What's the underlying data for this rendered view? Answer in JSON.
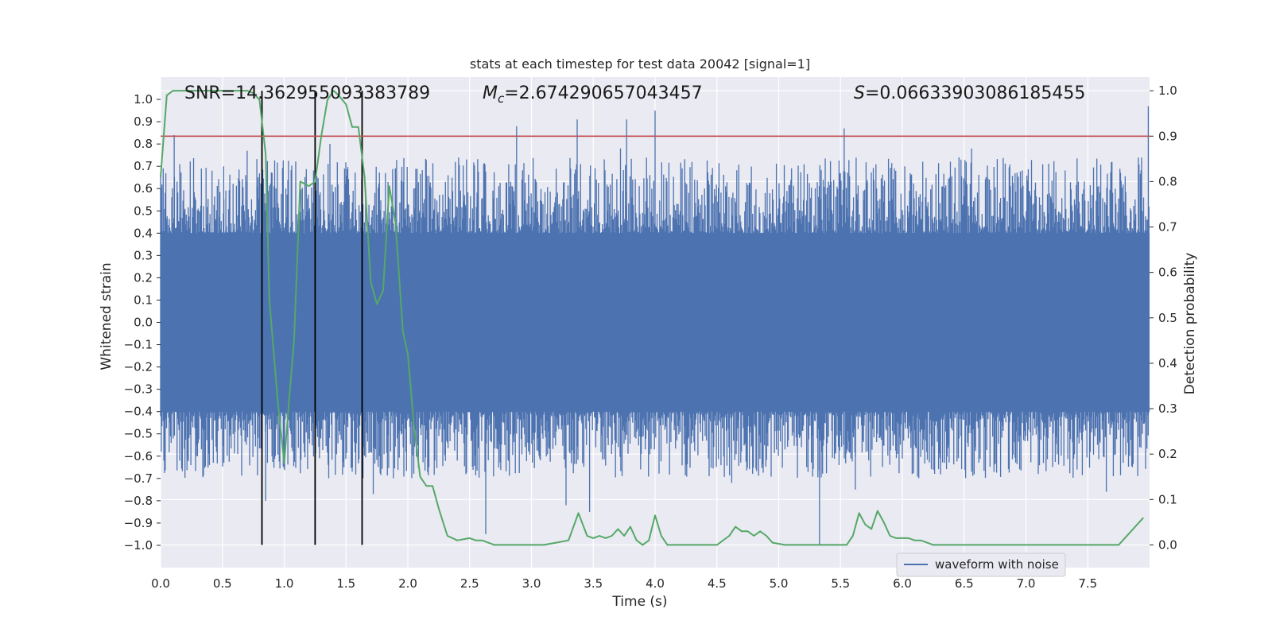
{
  "chart_data": {
    "type": "line",
    "title": "stats at each timestep for test data 20042 [signal=1]",
    "xlabel": "Time (s)",
    "ylabel": "Whitened strain",
    "y2label": "Detection probability",
    "xlim": [
      0.0,
      8.0
    ],
    "ylim": [
      -1.1,
      1.1
    ],
    "y2lim": [
      -0.05,
      1.03
    ],
    "xticks": [
      "0.0",
      "0.5",
      "1.0",
      "1.5",
      "2.0",
      "2.5",
      "3.0",
      "3.5",
      "4.0",
      "4.5",
      "5.0",
      "5.5",
      "6.0",
      "6.5",
      "7.0",
      "7.5"
    ],
    "xtick_values": [
      0,
      0.5,
      1,
      1.5,
      2,
      2.5,
      3,
      3.5,
      4,
      4.5,
      5,
      5.5,
      6,
      6.5,
      7,
      7.5
    ],
    "yticks": [
      "1.0",
      "0.9",
      "0.8",
      "0.7",
      "0.6",
      "0.5",
      "0.4",
      "0.3",
      "0.2",
      "0.1",
      "0.0",
      "−0.1",
      "−0.2",
      "−0.3",
      "−0.4",
      "−0.5",
      "−0.6",
      "−0.7",
      "−0.8",
      "−0.9",
      "−1.0"
    ],
    "ytick_values": [
      1.0,
      0.9,
      0.8,
      0.7,
      0.6,
      0.5,
      0.4,
      0.3,
      0.2,
      0.1,
      0.0,
      -0.1,
      -0.2,
      -0.3,
      -0.4,
      -0.5,
      -0.6,
      -0.7,
      -0.8,
      -0.9,
      -1.0
    ],
    "y2ticks": [
      "1.0",
      "0.9",
      "0.8",
      "0.7",
      "0.6",
      "0.5",
      "0.4",
      "0.3",
      "0.2",
      "0.1",
      "0.0"
    ],
    "y2tick_values": [
      1.0,
      0.9,
      0.8,
      0.7,
      0.6,
      0.5,
      0.4,
      0.3,
      0.2,
      0.1,
      0.0
    ],
    "annotations": {
      "snr": "SNR=14.362955093383789",
      "mc_prefix": "M",
      "mc_sub": "c",
      "mc_value": "=2.674290657043457",
      "s_prefix": "S",
      "s_value": "=0.06633903086185455"
    },
    "threshold": {
      "value": 0.9,
      "color": "#c44e52"
    },
    "vertical_markers": [
      0.82,
      1.25,
      1.63
    ],
    "legend": {
      "label": "waveform with noise",
      "location": "lower-right"
    },
    "series": [
      {
        "name": "waveform with noise",
        "color": "#4c72b0",
        "kind": "noise",
        "band_amplitude": 0.4,
        "spike_events": [
          {
            "x": 0.11,
            "y": 0.84
          },
          {
            "x": 0.33,
            "y": 0.69
          },
          {
            "x": 0.51,
            "y": 0.7
          },
          {
            "x": 0.7,
            "y": 0.77
          },
          {
            "x": 0.85,
            "y": -0.8
          },
          {
            "x": 1.25,
            "y": 0.7
          },
          {
            "x": 1.37,
            "y": 0.8
          },
          {
            "x": 1.55,
            "y": -0.67
          },
          {
            "x": 1.72,
            "y": -0.77
          },
          {
            "x": 1.9,
            "y": 0.69
          },
          {
            "x": 2.63,
            "y": -0.95
          },
          {
            "x": 2.88,
            "y": 0.88
          },
          {
            "x": 3.28,
            "y": -0.82
          },
          {
            "x": 3.37,
            "y": 0.91
          },
          {
            "x": 3.47,
            "y": -0.85
          },
          {
            "x": 3.72,
            "y": 0.78
          },
          {
            "x": 3.77,
            "y": 0.91
          },
          {
            "x": 4.0,
            "y": 0.95
          },
          {
            "x": 4.62,
            "y": -0.72
          },
          {
            "x": 5.33,
            "y": -1.0
          },
          {
            "x": 5.53,
            "y": 0.87
          },
          {
            "x": 5.62,
            "y": -0.75
          },
          {
            "x": 6.02,
            "y": 0.7
          },
          {
            "x": 6.56,
            "y": 0.78
          },
          {
            "x": 7.1,
            "y": -0.68
          },
          {
            "x": 7.65,
            "y": -0.76
          },
          {
            "x": 7.99,
            "y": 0.97
          }
        ]
      },
      {
        "name": "detection probability",
        "color": "#55a868",
        "axis": "right",
        "x": [
          0.0,
          0.05,
          0.1,
          0.2,
          0.3,
          0.5,
          0.6,
          0.7,
          0.75,
          0.8,
          0.85,
          0.88,
          0.95,
          1.0,
          1.04,
          1.08,
          1.13,
          1.2,
          1.25,
          1.3,
          1.35,
          1.4,
          1.44,
          1.5,
          1.55,
          1.6,
          1.65,
          1.7,
          1.75,
          1.8,
          1.85,
          1.9,
          1.96,
          2.0,
          2.05,
          2.1,
          2.15,
          2.2,
          2.25,
          2.32,
          2.4,
          2.5,
          2.55,
          2.6,
          2.7,
          2.8,
          2.95,
          3.1,
          3.2,
          3.3,
          3.38,
          3.45,
          3.5,
          3.55,
          3.6,
          3.65,
          3.7,
          3.75,
          3.8,
          3.85,
          3.9,
          3.95,
          4.0,
          4.05,
          4.1,
          4.2,
          4.3,
          4.4,
          4.5,
          4.6,
          4.65,
          4.7,
          4.75,
          4.8,
          4.85,
          4.9,
          4.95,
          5.05,
          5.2,
          5.4,
          5.5,
          5.55,
          5.6,
          5.65,
          5.7,
          5.75,
          5.8,
          5.85,
          5.9,
          5.95,
          6.05,
          6.1,
          6.15,
          6.25,
          6.4,
          6.5,
          6.6,
          6.8,
          7.0,
          7.5,
          7.65,
          7.75,
          7.85,
          7.95
        ],
        "values": [
          0.81,
          0.99,
          1.0,
          1.0,
          1.0,
          1.0,
          1.0,
          1.0,
          0.995,
          0.98,
          0.86,
          0.54,
          0.31,
          0.18,
          0.32,
          0.45,
          0.8,
          0.79,
          0.8,
          0.9,
          0.98,
          1.0,
          0.99,
          0.97,
          0.92,
          0.92,
          0.81,
          0.58,
          0.53,
          0.56,
          0.79,
          0.71,
          0.47,
          0.42,
          0.26,
          0.15,
          0.13,
          0.13,
          0.08,
          0.02,
          0.01,
          0.015,
          0.01,
          0.01,
          0.0,
          0.0,
          0.0,
          0.0,
          0.005,
          0.01,
          0.07,
          0.02,
          0.015,
          0.02,
          0.015,
          0.02,
          0.035,
          0.02,
          0.04,
          0.01,
          0.0,
          0.01,
          0.065,
          0.02,
          0.0,
          0.0,
          0.0,
          0.0,
          0.0,
          0.02,
          0.04,
          0.03,
          0.03,
          0.02,
          0.03,
          0.02,
          0.005,
          0.0,
          0.0,
          0.0,
          0.0,
          0.0,
          0.02,
          0.07,
          0.045,
          0.035,
          0.075,
          0.05,
          0.02,
          0.015,
          0.015,
          0.01,
          0.01,
          0.0,
          0.0,
          0.0,
          0.0,
          0.0,
          0.0,
          0.0,
          0.0,
          0.0,
          0.03,
          0.06
        ]
      }
    ]
  }
}
